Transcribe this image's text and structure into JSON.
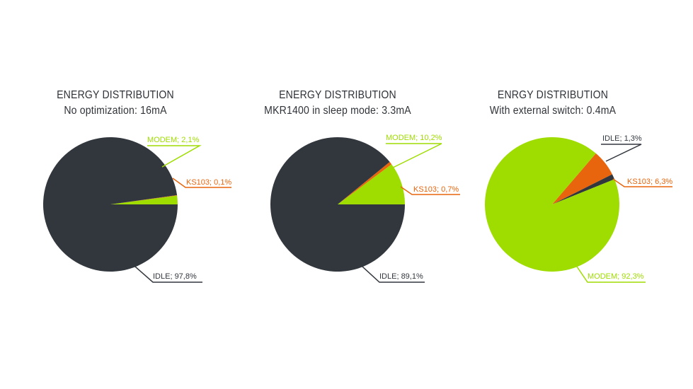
{
  "colors": {
    "idle": "#32373e",
    "modem": "#9fdc00",
    "ks103": "#e8650d",
    "text": "#2f3338"
  },
  "chart_data": [
    {
      "type": "pie",
      "title": "ENERGY DISTRIBUTION",
      "subtitle": "No optimization: 16mA",
      "slices": [
        {
          "name": "MODEM",
          "value": 2.1,
          "label": "MODEM; 2,1%",
          "color": "#9fdc00"
        },
        {
          "name": "KS103",
          "value": 0.1,
          "label": "KS103; 0,1%",
          "color": "#e8650d"
        },
        {
          "name": "IDLE",
          "value": 97.8,
          "label": "IDLE; 97,8%",
          "color": "#32373e"
        }
      ]
    },
    {
      "type": "pie",
      "title": "ENERGY DISTRIBUTION",
      "subtitle": "MKR1400 in sleep mode: 3.3mA",
      "slices": [
        {
          "name": "MODEM",
          "value": 10.2,
          "label": "MODEM; 10,2%",
          "color": "#9fdc00"
        },
        {
          "name": "KS103",
          "value": 0.7,
          "label": "KS103; 0,7%",
          "color": "#e8650d"
        },
        {
          "name": "IDLE",
          "value": 89.1,
          "label": "IDLE; 89,1%",
          "color": "#32373e"
        }
      ]
    },
    {
      "type": "pie",
      "title": "ENRGY DISTRIBUTION",
      "subtitle": "With external switch: 0.4mA",
      "slices": [
        {
          "name": "IDLE",
          "value": 1.3,
          "label": "IDLE; 1,3%",
          "color": "#32373e"
        },
        {
          "name": "KS103",
          "value": 6.3,
          "label": "KS103; 6,3%",
          "color": "#e8650d"
        },
        {
          "name": "MODEM",
          "value": 92.3,
          "label": "MODEM; 92,3%",
          "color": "#9fdc00"
        }
      ]
    }
  ]
}
